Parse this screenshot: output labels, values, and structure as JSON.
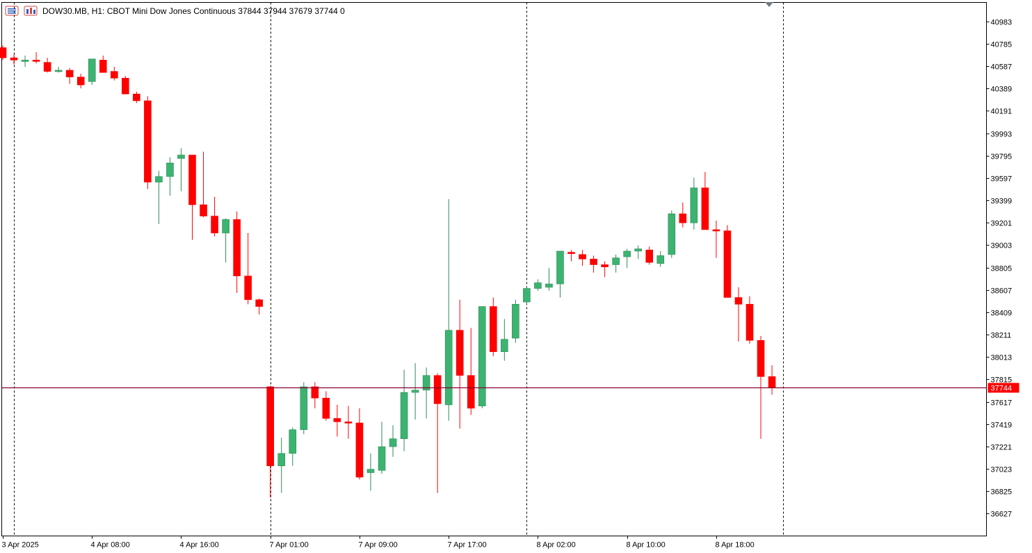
{
  "header": {
    "symbol": "DOW30.MB",
    "timeframe": "H1:",
    "description": "CBOT Mini Dow Jones Continuous",
    "ohlc": "37844 37944 37679 37744",
    "volume": "0"
  },
  "colors": {
    "bull": "#3cb371",
    "bear": "#ff0000",
    "bid_line": "#8b0033",
    "price_tag": "#ff0000",
    "separator": "#000000"
  },
  "icons": [
    "chart-menu-icon",
    "chart-type-icon",
    "shift-marker-icon"
  ],
  "chart_data": {
    "type": "candlestick",
    "title": "",
    "y_ticks": [
      40983,
      40785,
      40587,
      40389,
      40191,
      39993,
      39795,
      39597,
      39399,
      39201,
      39003,
      38805,
      38607,
      38409,
      38211,
      38013,
      37815,
      37617,
      37419,
      37221,
      37023,
      36825,
      36627
    ],
    "ylim": [
      36430,
      41150
    ],
    "x_labels": [
      {
        "index": 0,
        "text": "3 Apr 2025"
      },
      {
        "index": 8,
        "text": "4 Apr 08:00"
      },
      {
        "index": 16,
        "text": "4 Apr 16:00"
      },
      {
        "index": 24,
        "text": "7 Apr 01:00"
      },
      {
        "index": 32,
        "text": "7 Apr 09:00"
      },
      {
        "index": 40,
        "text": "7 Apr 17:00"
      },
      {
        "index": 48,
        "text": "8 Apr 02:00"
      },
      {
        "index": 56,
        "text": "8 Apr 10:00"
      },
      {
        "index": 64,
        "text": "8 Apr 18:00"
      }
    ],
    "day_separators": [
      1,
      24,
      47,
      70
    ],
    "current_price": 37744,
    "current_price_label": "37744",
    "candles": [
      [
        40750,
        40770,
        40640,
        40660
      ],
      [
        40660,
        40690,
        40600,
        40640
      ],
      [
        40640,
        40680,
        40580,
        40640
      ],
      [
        40640,
        40710,
        40610,
        40630
      ],
      [
        40620,
        40660,
        40530,
        40540
      ],
      [
        40540,
        40580,
        40530,
        40550
      ],
      [
        40550,
        40570,
        40430,
        40490
      ],
      [
        40490,
        40520,
        40390,
        40420
      ],
      [
        40450,
        40650,
        40420,
        40650
      ],
      [
        40640,
        40680,
        40530,
        40530
      ],
      [
        40540,
        40580,
        40460,
        40480
      ],
      [
        40480,
        40500,
        40340,
        40340
      ],
      [
        40340,
        40360,
        40260,
        40280
      ],
      [
        40280,
        40320,
        39500,
        39560
      ],
      [
        39560,
        39660,
        39190,
        39610
      ],
      [
        39610,
        39780,
        39440,
        39730
      ],
      [
        39770,
        39860,
        39480,
        39800
      ],
      [
        39800,
        39800,
        39050,
        39360
      ],
      [
        39360,
        39830,
        39250,
        39260
      ],
      [
        39260,
        39430,
        39080,
        39110
      ],
      [
        39110,
        39240,
        38850,
        39230
      ],
      [
        39230,
        39300,
        38580,
        38730
      ],
      [
        38730,
        39110,
        38480,
        38520
      ],
      [
        38520,
        38530,
        38390,
        38460
      ],
      [
        37750,
        37760,
        36770,
        37050
      ],
      [
        37050,
        37300,
        36810,
        37160
      ],
      [
        37160,
        37390,
        37050,
        37370
      ],
      [
        37370,
        37790,
        37330,
        37750
      ],
      [
        37750,
        37790,
        37560,
        37650
      ],
      [
        37650,
        37710,
        37450,
        37470
      ],
      [
        37470,
        37590,
        37310,
        37440
      ],
      [
        37440,
        37580,
        37290,
        37430
      ],
      [
        37430,
        37560,
        36930,
        36950
      ],
      [
        36990,
        37160,
        36830,
        37020
      ],
      [
        37010,
        37440,
        36980,
        37220
      ],
      [
        37220,
        37410,
        37130,
        37290
      ],
      [
        37290,
        37900,
        37180,
        37700
      ],
      [
        37700,
        37960,
        37460,
        37720
      ],
      [
        37720,
        37920,
        37470,
        37850
      ],
      [
        37850,
        37870,
        36810,
        37600
      ],
      [
        37590,
        39410,
        37450,
        38250
      ],
      [
        38250,
        38520,
        37380,
        37850
      ],
      [
        37850,
        38270,
        37500,
        37560
      ],
      [
        37580,
        38450,
        37560,
        38460
      ],
      [
        38460,
        38540,
        38020,
        38060
      ],
      [
        38060,
        38350,
        37980,
        38170
      ],
      [
        38180,
        38520,
        38140,
        38480
      ],
      [
        38500,
        38630,
        38480,
        38620
      ],
      [
        38620,
        38700,
        38600,
        38670
      ],
      [
        38630,
        38800,
        38600,
        38660
      ],
      [
        38660,
        38940,
        38540,
        38950
      ],
      [
        38940,
        38960,
        38860,
        38930
      ],
      [
        38920,
        38960,
        38820,
        38880
      ],
      [
        38880,
        38910,
        38760,
        38830
      ],
      [
        38830,
        38860,
        38720,
        38810
      ],
      [
        38830,
        38920,
        38760,
        38890
      ],
      [
        38900,
        38970,
        38800,
        38950
      ],
      [
        38950,
        39000,
        38880,
        38970
      ],
      [
        38960,
        38990,
        38830,
        38850
      ],
      [
        38840,
        38950,
        38810,
        38910
      ],
      [
        38920,
        39310,
        38890,
        39280
      ],
      [
        39280,
        39380,
        39160,
        39200
      ],
      [
        39200,
        39600,
        39140,
        39510
      ],
      [
        39510,
        39650,
        39140,
        39140
      ],
      [
        39140,
        39220,
        38890,
        39130
      ],
      [
        39130,
        39180,
        38540,
        38540
      ],
      [
        38540,
        38630,
        38150,
        38480
      ],
      [
        38480,
        38550,
        38130,
        38160
      ],
      [
        38160,
        38200,
        37290,
        37840
      ],
      [
        37840,
        37940,
        37680,
        37740
      ]
    ]
  }
}
